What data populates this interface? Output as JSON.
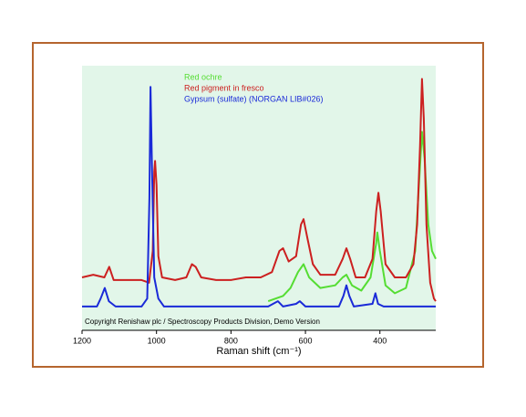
{
  "chart_data": {
    "type": "line",
    "xlabel": "Raman shift (cm⁻¹)",
    "annotation": "Copyright Renishaw plc / Spectroscopy Products Division, Demo Version",
    "xlim": [
      1200,
      250
    ],
    "ylim": [
      0,
      100
    ],
    "xticks": [
      1200,
      1000,
      800,
      600,
      400
    ],
    "background": "#e2f6e9",
    "series": [
      {
        "name": "Red ochre",
        "color": "#55dd33",
        "x": [
          700,
          660,
          640,
          620,
          605,
          590,
          560,
          520,
          500,
          490,
          475,
          450,
          425,
          410,
          407,
          400,
          385,
          360,
          330,
          305,
          295,
          287,
          280,
          270,
          260,
          250
        ],
        "values": [
          11,
          13,
          16,
          22,
          25,
          20,
          16,
          17,
          20,
          21,
          17,
          15,
          20,
          33,
          37,
          30,
          17,
          14,
          16,
          30,
          55,
          75,
          65,
          40,
          30,
          27
        ]
      },
      {
        "name": "Red pigment in fresco",
        "color": "#cc2020",
        "x": [
          1200,
          1170,
          1140,
          1127,
          1115,
          1080,
          1040,
          1020,
          1010,
          1006,
          1004,
          1000,
          995,
          985,
          950,
          920,
          905,
          895,
          880,
          840,
          800,
          760,
          720,
          690,
          670,
          660,
          645,
          625,
          612,
          605,
          595,
          580,
          560,
          520,
          500,
          490,
          480,
          465,
          440,
          420,
          410,
          404,
          398,
          385,
          360,
          330,
          310,
          300,
          292,
          287,
          282,
          275,
          265,
          255,
          250
        ],
        "values": [
          20,
          21,
          20,
          24,
          19,
          19,
          19,
          18,
          30,
          60,
          64,
          55,
          28,
          20,
          19,
          20,
          25,
          24,
          20,
          19,
          19,
          20,
          20,
          22,
          30,
          31,
          26,
          28,
          40,
          42,
          35,
          25,
          21,
          21,
          27,
          31,
          27,
          20,
          20,
          27,
          45,
          52,
          45,
          25,
          20,
          20,
          25,
          40,
          70,
          95,
          80,
          40,
          18,
          12,
          11
        ]
      },
      {
        "name": "Gypsum (sulfate) (NORGAN LIB#026)",
        "color": "#1a2ad8",
        "x": [
          1200,
          1160,
          1150,
          1139,
          1128,
          1110,
          1040,
          1025,
          1019,
          1016,
          1012,
          1006,
          995,
          980,
          700,
          674,
          660,
          625,
          615,
          600,
          510,
          498,
          490,
          482,
          470,
          420,
          412,
          405,
          390,
          250
        ],
        "values": [
          9,
          9,
          12,
          16,
          11,
          9,
          9,
          12,
          50,
          92,
          60,
          20,
          12,
          9,
          9,
          11,
          9,
          10,
          11,
          9,
          9,
          13,
          17,
          13,
          9,
          10,
          14,
          10,
          9,
          9
        ]
      }
    ]
  }
}
